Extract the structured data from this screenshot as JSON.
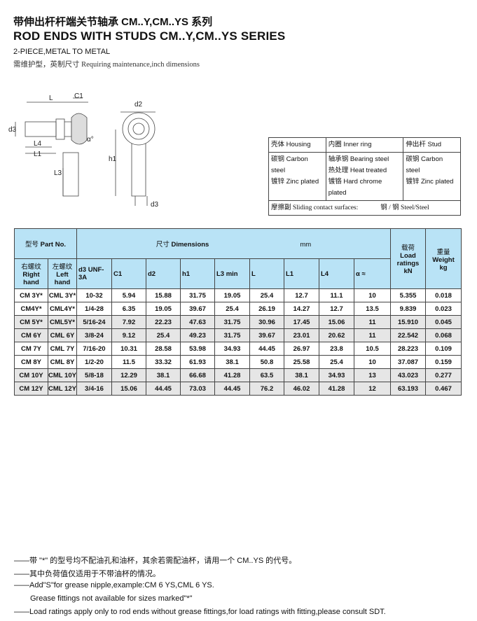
{
  "title_cn": "带伸出杆杆端关节轴承 CM..Y,CM..YS 系列",
  "title_en": "ROD ENDS WITH STUDS CM..Y,CM..YS SERIES",
  "subtitle": "2-PIECE,METAL TO METAL",
  "subtitle2": "需维护型，英制尺寸 Requiring maintenance,inch dimensions",
  "drawing": {
    "labels": {
      "L": "L",
      "C1": "C1",
      "d3": "d3",
      "L4": "L4",
      "L1": "L1",
      "L3": "L3",
      "alpha": "α°",
      "d2": "d2",
      "h1": "h1"
    }
  },
  "materials": {
    "headers": [
      "壳体 Housing",
      "内圈 Inner ring",
      "伸出杆 Stud"
    ],
    "housing": [
      "碳钢 Carbon steel",
      "镀锌 Zinc plated"
    ],
    "inner": [
      "轴承钢 Bearing steel",
      "热处理 Heat treated",
      "镀铬 Hard chrome plated"
    ],
    "stud": [
      "碳钢 Carbon steel",
      "镀锌 Zinc plated"
    ],
    "sliding_label": "摩擦副 Sliding contact surfaces:",
    "sliding_value": "钢 / 钢 Steel/Steel"
  },
  "table": {
    "part_no_cn": "型号",
    "part_no": "Part No.",
    "dims_cn": "尺寸",
    "dims": "Dimensions",
    "unit": "mm",
    "load_cn": "载荷",
    "load": "Load ratings",
    "load_unit": "kN",
    "weight_cn": "重量",
    "weight": "Weight",
    "weight_unit": "kg",
    "right_cn": "右螺纹",
    "right": "Right hand",
    "left_cn": "左螺纹",
    "left": "Left hand",
    "cols": [
      "d3 UNF-3A",
      "C1",
      "d2",
      "h1",
      "L3 min",
      "L",
      "L1",
      "L4",
      "α ≈"
    ],
    "rows": [
      [
        "CM 3Y*",
        "CML 3Y*",
        "10-32",
        "5.94",
        "15.88",
        "31.75",
        "19.05",
        "25.4",
        "12.7",
        "11.1",
        "10",
        "5.355",
        "0.018"
      ],
      [
        "CM4Y*",
        "CML4Y*",
        "1/4-28",
        "6.35",
        "19.05",
        "39.67",
        "25.4",
        "26.19",
        "14.27",
        "12.7",
        "13.5",
        "9.839",
        "0.023"
      ],
      [
        "CM 5Y*",
        "CML5Y*",
        "5/16-24",
        "7.92",
        "22.23",
        "47.63",
        "31.75",
        "30.96",
        "17.45",
        "15.06",
        "11",
        "15.910",
        "0.045"
      ],
      [
        "CM 6Y",
        "CML 6Y",
        "3/8-24",
        "9.12",
        "25.4",
        "49.23",
        "31.75",
        "39.67",
        "23.01",
        "20.62",
        "11",
        "22.542",
        "0.068"
      ],
      [
        "CM 7Y",
        "CML 7Y",
        "7/16-20",
        "10.31",
        "28.58",
        "53.98",
        "34.93",
        "44.45",
        "26.97",
        "23.8",
        "10.5",
        "28.223",
        "0.109"
      ],
      [
        "CM 8Y",
        "CML 8Y",
        "1/2-20",
        "11.5",
        "33.32",
        "61.93",
        "38.1",
        "50.8",
        "25.58",
        "25.4",
        "10",
        "37.087",
        "0.159"
      ],
      [
        "CM 10Y",
        "CML 10Y",
        "5/8-18",
        "12.29",
        "38.1",
        "66.68",
        "41.28",
        "63.5",
        "38.1",
        "34.93",
        "13",
        "43.023",
        "0.277"
      ],
      [
        "CM 12Y",
        "CML 12Y",
        "3/4-16",
        "15.06",
        "44.45",
        "73.03",
        "44.45",
        "76.2",
        "46.02",
        "41.28",
        "12",
        "63.193",
        "0.467"
      ]
    ]
  },
  "notes": [
    "——带 \"*\" 的型号均不配油孔和油杯，其余若需配油杯，请用一个 CM..YS 的代号。",
    "——其中负荷值仅适用于不带油杯的情况。",
    "——Add\"S\"for grease nipple,example:CM 6 YS,CML 6 YS.",
    "Grease fittings not available for sizes marked\"*\"",
    "——Load ratings apply only to rod ends without grease fittings,for load ratings with fitting,please consult SDT."
  ],
  "colors": {
    "header_bg": "#b9e3f6",
    "shaded_row": "#e6e6e6"
  }
}
